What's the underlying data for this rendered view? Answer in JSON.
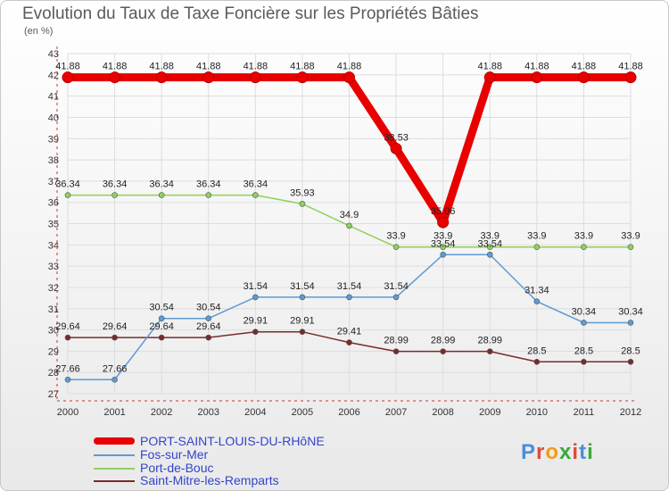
{
  "title": "Evolution du Taux de Taxe Foncière sur les Propriétés Bâties",
  "subtitle": "(en %)",
  "logo": {
    "text": "Proxiti",
    "letters": [
      "P",
      "r",
      "o",
      "x",
      "i",
      "t",
      "i"
    ],
    "colors": [
      "#4a8fd6",
      "#e04a3a",
      "#f39c12",
      "#3aa83a",
      "#e04a3a",
      "#4a8fd6",
      "#3aa83a"
    ]
  },
  "chart_data": {
    "type": "line",
    "x": [
      2000,
      2001,
      2002,
      2003,
      2004,
      2005,
      2006,
      2007,
      2008,
      2009,
      2010,
      2011,
      2012
    ],
    "ylim": [
      27,
      43
    ],
    "yticks": [
      27,
      28,
      29,
      30,
      31,
      32,
      33,
      34,
      35,
      36,
      37,
      38,
      39,
      40,
      41,
      42,
      43
    ],
    "grid": true,
    "legend": "bottom-left",
    "series": [
      {
        "name": "PORT-SAINT-LOUIS-DU-RHôNE",
        "color": "#e80000",
        "width": 9,
        "values": [
          41.88,
          41.88,
          41.88,
          41.88,
          41.88,
          41.88,
          41.88,
          38.53,
          35.06,
          41.88,
          41.88,
          41.88,
          41.88
        ],
        "labels": [
          "41.88",
          "41.88",
          "41.88",
          "41.88",
          "41.88",
          "41.88",
          "41.88",
          "38.53",
          "35.06",
          "41.88",
          "41.88",
          "41.88",
          "41.88"
        ]
      },
      {
        "name": "Fos-sur-Mer",
        "color": "#5b9bd5",
        "width": 1.5,
        "values": [
          27.66,
          27.66,
          30.54,
          30.54,
          31.54,
          31.54,
          31.54,
          31.54,
          33.54,
          33.54,
          31.34,
          30.34,
          30.34
        ],
        "labels": [
          "27.66",
          "27.66",
          "30.54",
          "30.54",
          "31.54",
          "31.54",
          "31.54",
          "31.54",
          "33.54",
          "33.54",
          "31.34",
          "30.34",
          "30.34"
        ]
      },
      {
        "name": "Port-de-Bouc",
        "color": "#8fd15a",
        "width": 1.5,
        "values": [
          36.34,
          36.34,
          36.34,
          36.34,
          36.34,
          35.93,
          34.9,
          33.9,
          33.9,
          33.9,
          33.9,
          33.9,
          33.9
        ],
        "labels": [
          "36.34",
          "36.34",
          "36.34",
          "36.34",
          "36.34",
          "35.93",
          "34.9",
          "33.9",
          "33.9",
          "33.9",
          "33.9",
          "33.9",
          "33.9"
        ]
      },
      {
        "name": "Saint-Mitre-les-Remparts",
        "color": "#7a2a2a",
        "width": 1.5,
        "values": [
          29.64,
          29.64,
          29.64,
          29.64,
          29.91,
          29.91,
          29.41,
          28.99,
          28.99,
          28.99,
          28.5,
          28.5,
          28.5
        ],
        "labels": [
          "29.64",
          "29.64",
          "29.64",
          "29.64",
          "29.91",
          "29.91",
          "29.41",
          "28.99",
          "28.99",
          "28.99",
          "28.5",
          "28.5",
          "28.5"
        ]
      }
    ]
  }
}
